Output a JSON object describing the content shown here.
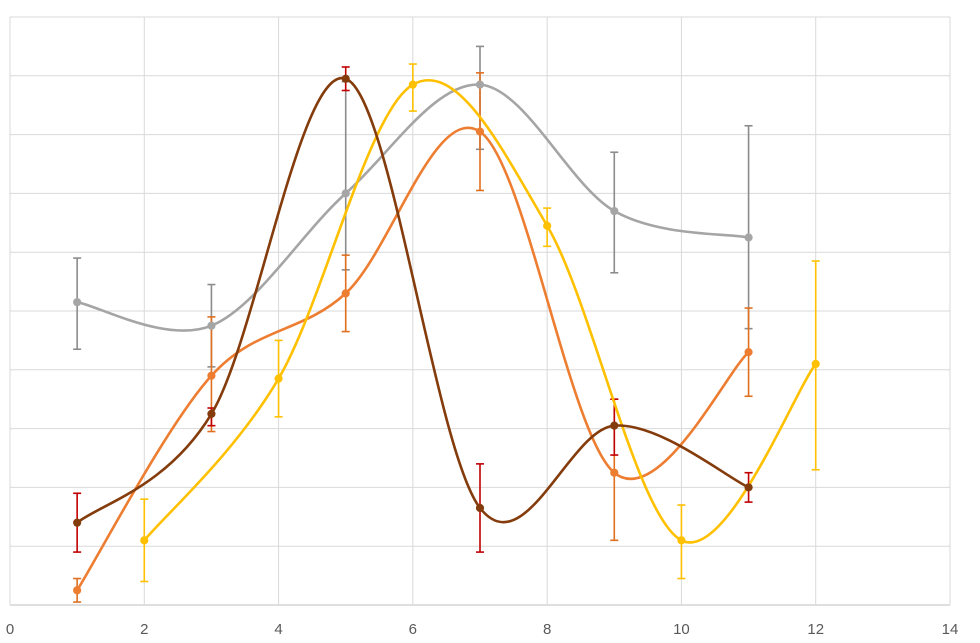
{
  "chart_data": {
    "type": "scatter",
    "style": "smoothed lines with markers and y error bars",
    "xlim": [
      0,
      14
    ],
    "x_ticks": [
      0,
      2,
      4,
      6,
      8,
      10,
      12,
      14
    ],
    "x_tick_labels": [
      "0",
      "2",
      "4",
      "6",
      "8",
      "10",
      "12",
      "14"
    ],
    "ylim": [
      0,
      10
    ],
    "y_gridlines": [
      0,
      1,
      2,
      3,
      4,
      5,
      6,
      7,
      8,
      9,
      10
    ],
    "y_tick_labels_shown": false,
    "grid": true,
    "legend": "none",
    "title": "",
    "xlabel": "",
    "ylabel": "",
    "series": [
      {
        "color": "#A5A5A5",
        "error_color": "#8C8C8C",
        "x": [
          1,
          3,
          5,
          7,
          9,
          11
        ],
        "y": [
          5.15,
          4.75,
          7.0,
          8.85,
          6.7,
          6.25
        ],
        "err_low": [
          0.8,
          0.7,
          1.3,
          1.1,
          1.05,
          1.55
        ],
        "err_high": [
          0.75,
          0.7,
          1.9,
          0.65,
          1.0,
          1.9
        ]
      },
      {
        "color": "#ED7D31",
        "error_color": "#E07020",
        "x": [
          1,
          3,
          5,
          7,
          9,
          11
        ],
        "y": [
          0.25,
          3.9,
          5.3,
          8.05,
          2.25,
          4.3
        ],
        "err_low": [
          0.2,
          0.95,
          0.65,
          1.0,
          1.15,
          0.75
        ],
        "err_high": [
          0.2,
          1.0,
          0.65,
          1.0,
          1.25,
          0.75
        ]
      },
      {
        "color": "#FFC000",
        "error_color": "#FFC000",
        "x": [
          2,
          4,
          6,
          8,
          10,
          12
        ],
        "y": [
          1.1,
          3.85,
          8.85,
          6.45,
          1.1,
          4.1
        ],
        "err_low": [
          0.7,
          0.65,
          0.45,
          0.35,
          0.65,
          1.8
        ],
        "err_high": [
          0.7,
          0.65,
          0.35,
          0.3,
          0.6,
          1.75
        ]
      },
      {
        "color": "#843C0C",
        "error_color": "#C00000",
        "x": [
          1,
          3,
          5,
          7,
          9,
          11
        ],
        "y": [
          1.4,
          3.25,
          8.95,
          1.65,
          3.05,
          2.0
        ],
        "err_low": [
          0.5,
          0.2,
          0.2,
          0.75,
          0.5,
          0.25
        ],
        "err_high": [
          0.5,
          0.1,
          0.2,
          0.75,
          0.45,
          0.25
        ]
      }
    ]
  }
}
